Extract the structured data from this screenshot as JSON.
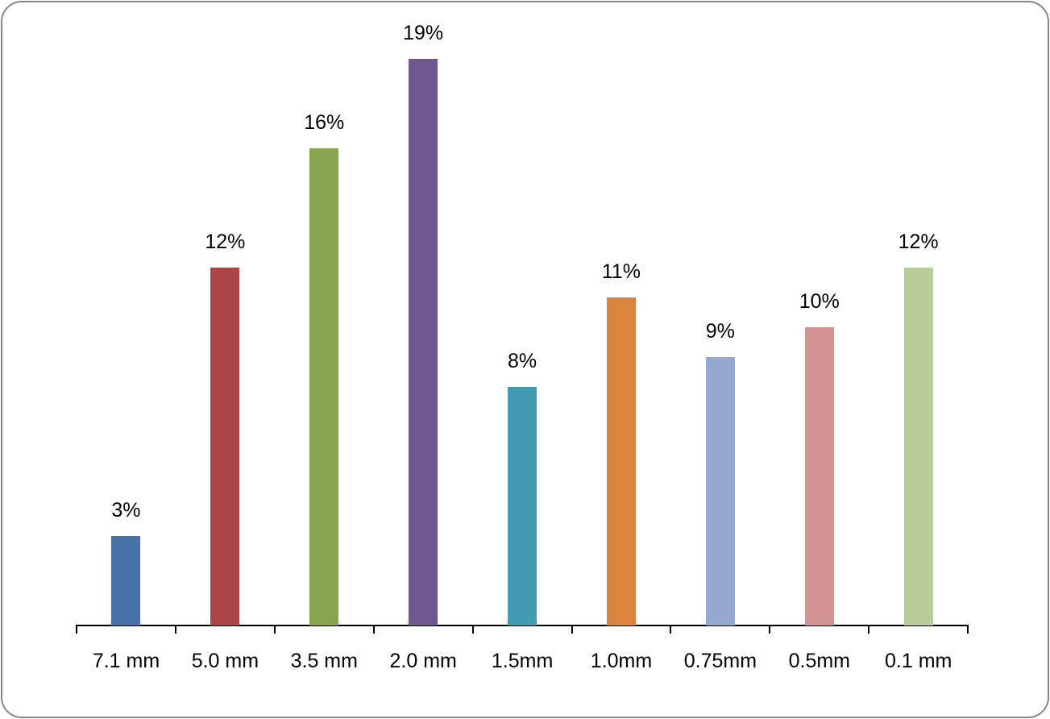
{
  "chart_data": {
    "type": "bar",
    "title": "",
    "xlabel": "",
    "ylabel": "",
    "categories": [
      "7.1 mm",
      "5.0 mm",
      "3.5 mm",
      "2.0 mm",
      "1.5mm",
      "1.0mm",
      "0.75mm",
      "0.5mm",
      "0.1 mm"
    ],
    "values": [
      3,
      12,
      16,
      19,
      8,
      11,
      9,
      10,
      12
    ],
    "value_labels": [
      "3%",
      "12%",
      "16%",
      "19%",
      "8%",
      "11%",
      "9%",
      "10%",
      "12%"
    ],
    "colors": [
      "#4672a8",
      "#a94645",
      "#87a54e",
      "#6f5790",
      "#429bb3",
      "#db843d",
      "#93a9d0",
      "#d29493",
      "#b8cd97"
    ],
    "ylim": [
      0,
      19
    ],
    "grid": false,
    "legend": "none",
    "y_axis_visible": false
  }
}
